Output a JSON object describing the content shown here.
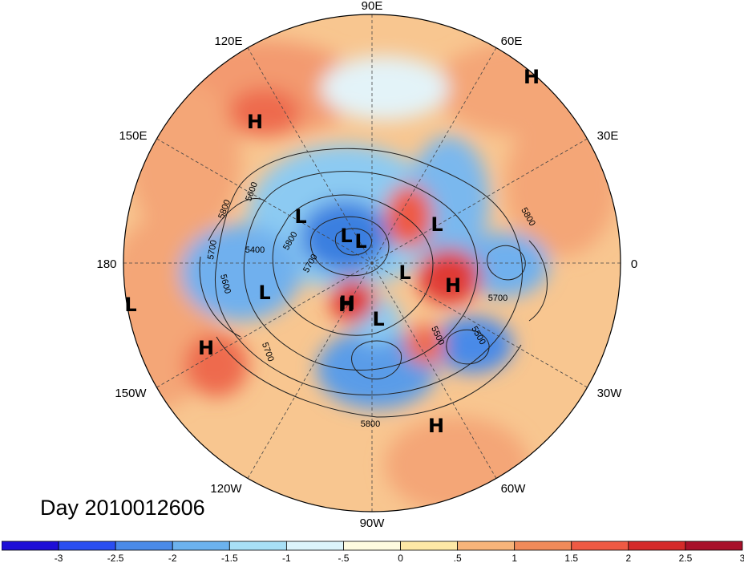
{
  "title": "Day 2010012606",
  "longitude_labels": [
    {
      "text": "90E"
    },
    {
      "text": "60E"
    },
    {
      "text": "30E"
    },
    {
      "text": "0"
    },
    {
      "text": "30W"
    },
    {
      "text": "60W"
    },
    {
      "text": "90W"
    },
    {
      "text": "120W"
    },
    {
      "text": "150W"
    },
    {
      "text": "180"
    },
    {
      "text": "150E"
    },
    {
      "text": "120E"
    }
  ],
  "pressure_centers": [
    "H",
    "H",
    "H",
    "H",
    "H",
    "H",
    "H",
    "L",
    "L",
    "L",
    "L",
    "L",
    "L",
    "L",
    "L"
  ],
  "contour_labels": [
    "5800",
    "5600",
    "5700",
    "5400",
    "5600",
    "5700",
    "5800",
    "5800",
    "5700",
    "5500",
    "5500",
    "5800",
    "5700"
  ],
  "colorbar": {
    "colors": [
      "#1e0fd6",
      "#2a4ef0",
      "#4a8ae8",
      "#6cb2ee",
      "#a8e0f6",
      "#dcf4fb",
      "#fefbe0",
      "#fde8a6",
      "#f7b47a",
      "#f08a5a",
      "#ee5a44",
      "#d42a2a",
      "#a8102a"
    ],
    "tick_labels": [
      "-3",
      "-2.5",
      "-2",
      "-1.5",
      "-1",
      "-.5",
      "0",
      ".5",
      "1",
      "1.5",
      "2",
      "2.5",
      "3"
    ]
  }
}
